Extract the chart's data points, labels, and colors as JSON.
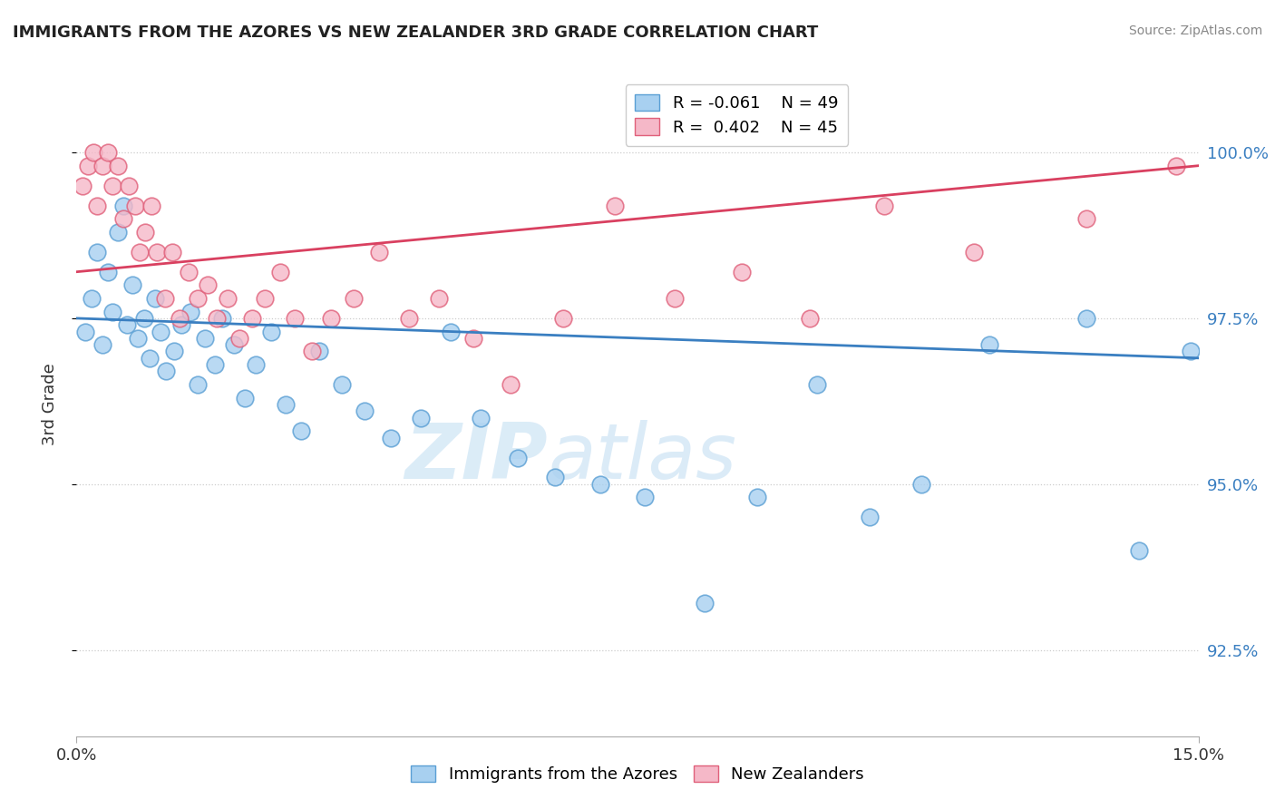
{
  "title": "IMMIGRANTS FROM THE AZORES VS NEW ZEALANDER 3RD GRADE CORRELATION CHART",
  "source_text": "Source: ZipAtlas.com",
  "ylabel": "3rd Grade",
  "xmin": 0.0,
  "xmax": 15.0,
  "ymin": 91.2,
  "ymax": 101.2,
  "yticks": [
    92.5,
    95.0,
    97.5,
    100.0
  ],
  "xticks": [
    0.0,
    15.0
  ],
  "xtick_labels": [
    "0.0%",
    "15.0%"
  ],
  "ytick_labels": [
    "92.5%",
    "95.0%",
    "97.5%",
    "100.0%"
  ],
  "legend_r1": "R = -0.061",
  "legend_n1": "N = 49",
  "legend_r2": "R =  0.402",
  "legend_n2": "N = 45",
  "blue_color": "#a8d0f0",
  "pink_color": "#f5b8c8",
  "blue_edge_color": "#5a9fd4",
  "pink_edge_color": "#e0607a",
  "blue_line_color": "#3a7fc1",
  "pink_line_color": "#d94060",
  "watermark_zip": "ZIP",
  "watermark_atlas": "atlas",
  "blue_line_y0": 97.5,
  "blue_line_y1": 96.9,
  "pink_line_y0": 98.2,
  "pink_line_y1": 99.8,
  "blue_x": [
    0.12,
    0.2,
    0.28,
    0.35,
    0.42,
    0.48,
    0.55,
    0.62,
    0.68,
    0.75,
    0.82,
    0.9,
    0.98,
    1.05,
    1.12,
    1.2,
    1.3,
    1.4,
    1.52,
    1.62,
    1.72,
    1.85,
    1.95,
    2.1,
    2.25,
    2.4,
    2.6,
    2.8,
    3.0,
    3.25,
    3.55,
    3.85,
    4.2,
    4.6,
    5.0,
    5.4,
    5.9,
    6.4,
    7.0,
    7.6,
    8.4,
    9.1,
    9.9,
    10.6,
    11.3,
    12.2,
    13.5,
    14.2,
    14.9
  ],
  "blue_y": [
    97.3,
    97.8,
    98.5,
    97.1,
    98.2,
    97.6,
    98.8,
    99.2,
    97.4,
    98.0,
    97.2,
    97.5,
    96.9,
    97.8,
    97.3,
    96.7,
    97.0,
    97.4,
    97.6,
    96.5,
    97.2,
    96.8,
    97.5,
    97.1,
    96.3,
    96.8,
    97.3,
    96.2,
    95.8,
    97.0,
    96.5,
    96.1,
    95.7,
    96.0,
    97.3,
    96.0,
    95.4,
    95.1,
    95.0,
    94.8,
    93.2,
    94.8,
    96.5,
    94.5,
    95.0,
    97.1,
    97.5,
    94.0,
    97.0
  ],
  "pink_x": [
    0.08,
    0.15,
    0.22,
    0.28,
    0.35,
    0.42,
    0.48,
    0.55,
    0.62,
    0.7,
    0.78,
    0.85,
    0.92,
    1.0,
    1.08,
    1.18,
    1.28,
    1.38,
    1.5,
    1.62,
    1.75,
    1.88,
    2.02,
    2.18,
    2.35,
    2.52,
    2.72,
    2.92,
    3.15,
    3.4,
    3.7,
    4.05,
    4.45,
    4.85,
    5.3,
    5.8,
    6.5,
    7.2,
    8.0,
    8.9,
    9.8,
    10.8,
    12.0,
    13.5,
    14.7
  ],
  "pink_y": [
    99.5,
    99.8,
    100.0,
    99.2,
    99.8,
    100.0,
    99.5,
    99.8,
    99.0,
    99.5,
    99.2,
    98.5,
    98.8,
    99.2,
    98.5,
    97.8,
    98.5,
    97.5,
    98.2,
    97.8,
    98.0,
    97.5,
    97.8,
    97.2,
    97.5,
    97.8,
    98.2,
    97.5,
    97.0,
    97.5,
    97.8,
    98.5,
    97.5,
    97.8,
    97.2,
    96.5,
    97.5,
    99.2,
    97.8,
    98.2,
    97.5,
    99.2,
    98.5,
    99.0,
    99.8
  ]
}
